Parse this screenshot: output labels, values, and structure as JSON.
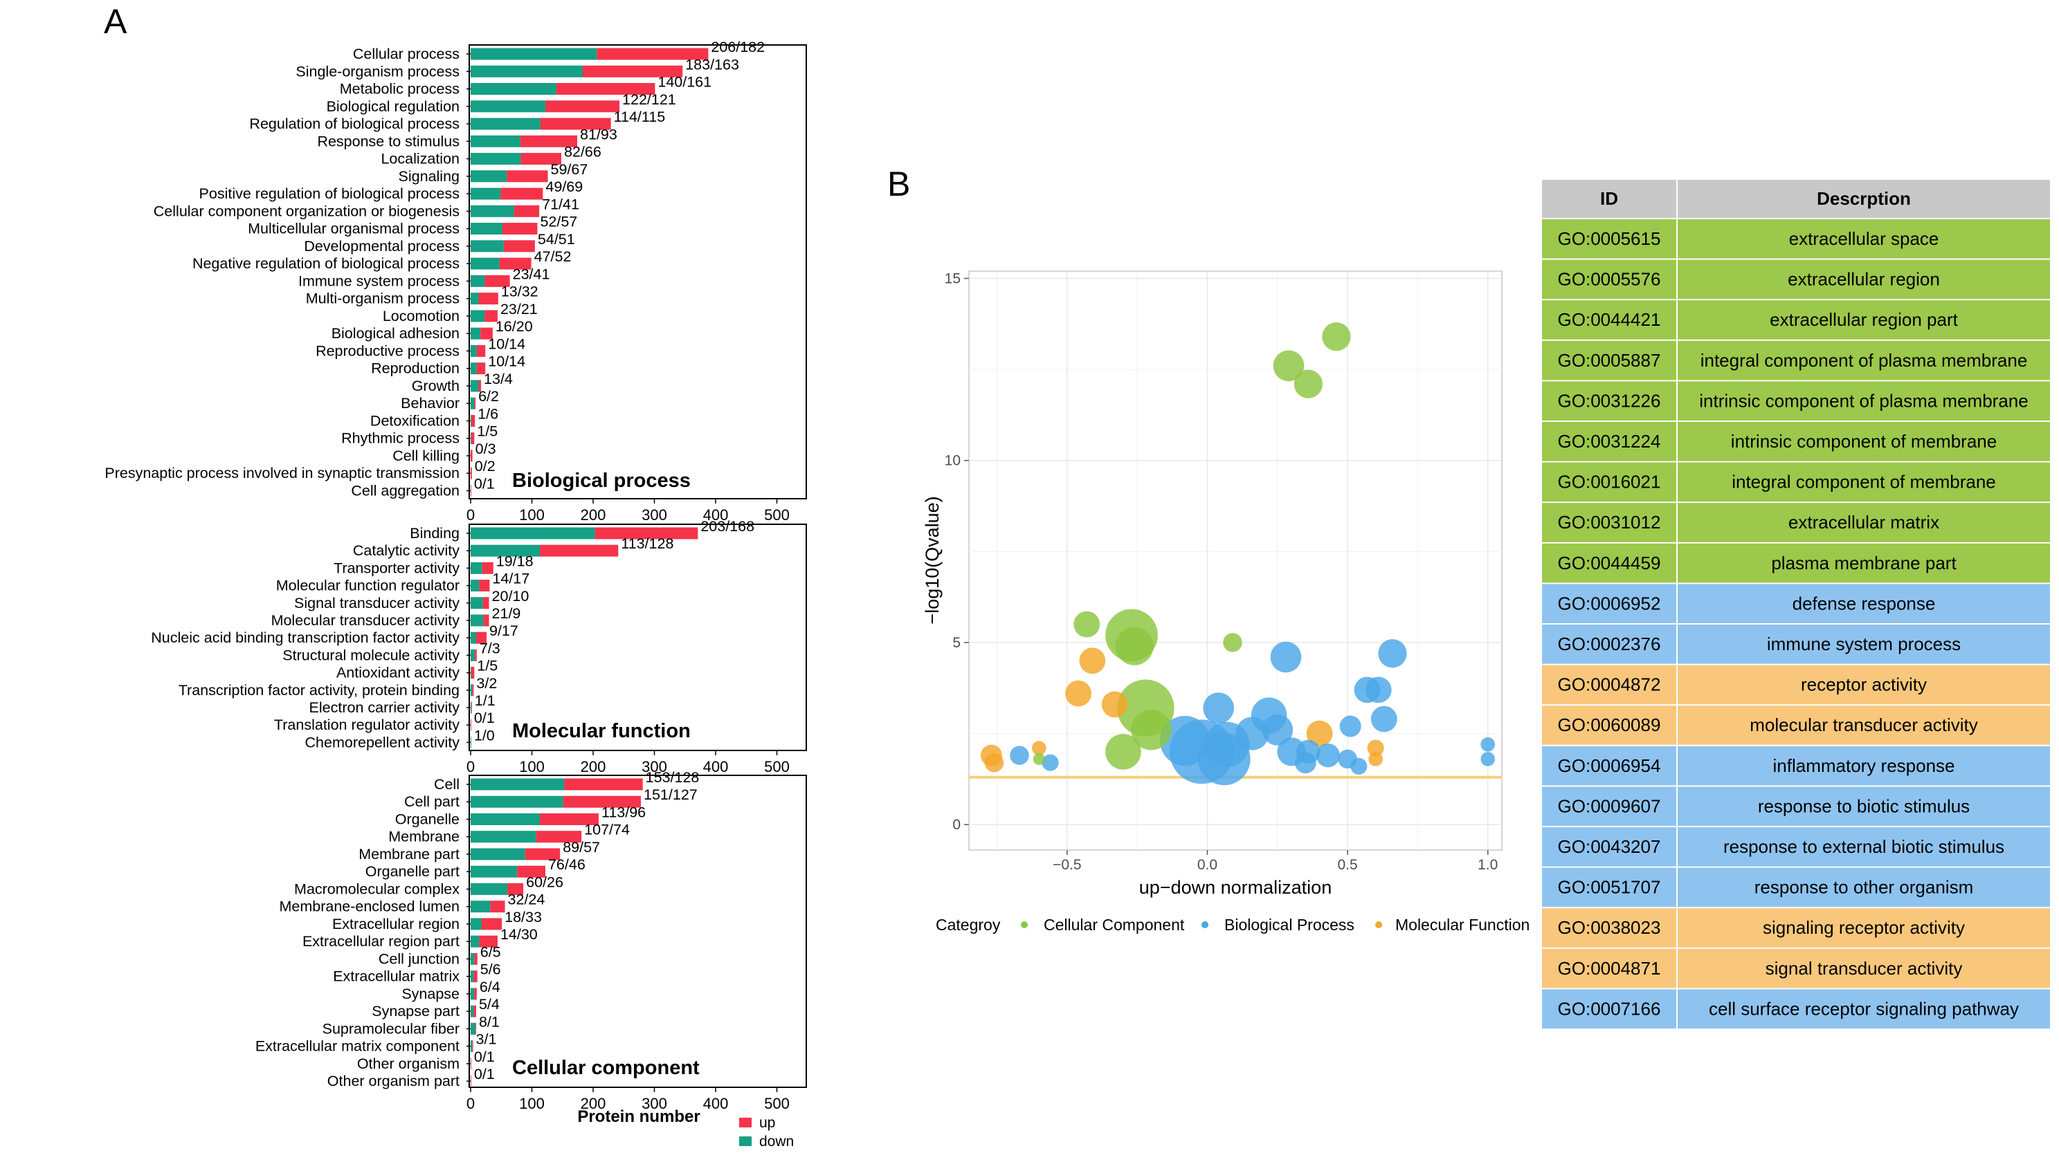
{
  "panel_a_label": "A",
  "panel_b_label": "B",
  "chart_data": [
    {
      "type": "bar",
      "stacked": true,
      "orientation": "horizontal",
      "title": "Biological process",
      "categories": [
        "Cellular process",
        "Single-organism process",
        "Metabolic process",
        "Biological regulation",
        "Regulation of biological process",
        "Response to stimulus",
        "Localization",
        "Signaling",
        "Positive regulation of biological process",
        "Cellular component organization or biogenesis",
        "Multicellular organismal process",
        "Developmental process",
        "Negative regulation of biological process",
        "Immune system process",
        "Multi-organism process",
        "Locomotion",
        "Biological adhesion",
        "Reproductive process",
        "Reproduction",
        "Growth",
        "Behavior",
        "Detoxification",
        "Rhythmic process",
        "Cell killing",
        "Presynaptic process involved in synaptic transmission",
        "Cell aggregation"
      ],
      "labels": [
        "206/182",
        "183/163",
        "140/161",
        "122/121",
        "114/115",
        "81/93",
        "82/66",
        "59/67",
        "49/69",
        "71/41",
        "52/57",
        "54/51",
        "47/52",
        "23/41",
        "13/32",
        "23/21",
        "16/20",
        "10/14",
        "10/14",
        "13/4",
        "6/2",
        "1/6",
        "1/5",
        "0/3",
        "0/2",
        "0/1"
      ],
      "series": [
        {
          "name": "down",
          "color": "#16a085",
          "values": [
            206,
            183,
            140,
            122,
            114,
            81,
            82,
            59,
            49,
            71,
            52,
            54,
            47,
            23,
            13,
            23,
            16,
            10,
            10,
            13,
            6,
            1,
            1,
            0,
            0,
            0
          ]
        },
        {
          "name": "up",
          "color": "#f5334a",
          "values": [
            182,
            163,
            161,
            121,
            115,
            93,
            66,
            67,
            69,
            41,
            57,
            51,
            52,
            41,
            32,
            21,
            20,
            14,
            14,
            4,
            2,
            6,
            5,
            3,
            2,
            1
          ]
        }
      ],
      "xlim": [
        0,
        550
      ],
      "xticks": [
        0,
        100,
        200,
        300,
        400,
        500
      ]
    },
    {
      "type": "bar",
      "stacked": true,
      "orientation": "horizontal",
      "title": "Molecular function",
      "categories": [
        "Binding",
        "Catalytic activity",
        "Transporter activity",
        "Molecular function regulator",
        "Signal transducer activity",
        "Molecular transducer activity",
        "Nucleic acid binding transcription factor activity",
        "Structural molecule activity",
        "Antioxidant activity",
        "Transcription factor activity, protein binding",
        "Electron carrier activity",
        "Translation regulator activity",
        "Chemorepellent activity"
      ],
      "labels": [
        "203/168",
        "113/128",
        "19/18",
        "14/17",
        "20/10",
        "21/9",
        "9/17",
        "7/3",
        "1/5",
        "3/2",
        "1/1",
        "0/1",
        "1/0"
      ],
      "series": [
        {
          "name": "down",
          "color": "#16a085",
          "values": [
            203,
            113,
            19,
            14,
            20,
            21,
            9,
            7,
            1,
            3,
            1,
            0,
            1
          ]
        },
        {
          "name": "up",
          "color": "#f5334a",
          "values": [
            168,
            128,
            18,
            17,
            10,
            9,
            17,
            3,
            5,
            2,
            1,
            1,
            0
          ]
        }
      ],
      "xlim": [
        0,
        550
      ],
      "xticks": [
        0,
        100,
        200,
        300,
        400,
        500
      ]
    },
    {
      "type": "bar",
      "stacked": true,
      "orientation": "horizontal",
      "title": "Cellular component",
      "categories": [
        "Cell",
        "Cell part",
        "Organelle",
        "Membrane",
        "Membrane part",
        "Organelle part",
        "Macromolecular complex",
        "Membrane-enclosed lumen",
        "Extracellular region",
        "Extracellular region part",
        "Cell junction",
        "Extracellular matrix",
        "Synapse",
        "Synapse part",
        "Supramolecular fiber",
        "Extracellular matrix component",
        "Other organism",
        "Other organism part"
      ],
      "labels": [
        "153/128",
        "151/127",
        "113/96",
        "107/74",
        "89/57",
        "76/46",
        "60/26",
        "32/24",
        "18/33",
        "14/30",
        "6/5",
        "5/6",
        "6/4",
        "5/4",
        "8/1",
        "3/1",
        "0/1",
        "0/1"
      ],
      "series": [
        {
          "name": "down",
          "color": "#16a085",
          "values": [
            153,
            151,
            113,
            107,
            89,
            76,
            60,
            32,
            18,
            14,
            6,
            5,
            6,
            5,
            8,
            3,
            0,
            0
          ]
        },
        {
          "name": "up",
          "color": "#f5334a",
          "values": [
            128,
            127,
            96,
            74,
            57,
            46,
            26,
            24,
            33,
            30,
            5,
            6,
            4,
            4,
            1,
            1,
            1,
            1
          ]
        }
      ],
      "xlim": [
        0,
        550
      ],
      "xticks": [
        0,
        100,
        200,
        300,
        400,
        500
      ],
      "xlabel": "Protein number",
      "legend": [
        {
          "name": "up",
          "color": "#f5334a"
        },
        {
          "name": "down",
          "color": "#16a085"
        }
      ]
    },
    {
      "type": "scatter",
      "subtype": "bubble",
      "xlabel": "up−down normalization",
      "ylabel": "−log10(Qvalue)",
      "xlim": [
        -0.85,
        1.05
      ],
      "ylim": [
        -0.7,
        15.2
      ],
      "xticks": [
        -0.5,
        0.0,
        0.5,
        1.0
      ],
      "xtick_labels": [
        "−0.5",
        "0.0",
        "0.5",
        "1.0"
      ],
      "yticks": [
        0,
        5,
        10,
        15
      ],
      "ytick_labels": [
        "0",
        "5",
        "10",
        "15"
      ],
      "threshold_y": 1.3,
      "threshold_color": "#f5cf7a",
      "legend_title": "Categroy",
      "categories": [
        {
          "name": "Cellular Component",
          "color": "#8cc63f"
        },
        {
          "name": "Biological Process",
          "color": "#4aa6e8"
        },
        {
          "name": "Molecular Function",
          "color": "#f4a62a"
        }
      ],
      "points": [
        {
          "x": 0.46,
          "y": 13.4,
          "size": 12,
          "category": "Cellular Component"
        },
        {
          "x": 0.29,
          "y": 12.6,
          "size": 13,
          "category": "Cellular Component"
        },
        {
          "x": 0.36,
          "y": 12.1,
          "size": 12,
          "category": "Cellular Component"
        },
        {
          "x": -0.43,
          "y": 5.5,
          "size": 11,
          "category": "Cellular Component"
        },
        {
          "x": -0.27,
          "y": 5.2,
          "size": 22,
          "category": "Cellular Component"
        },
        {
          "x": -0.26,
          "y": 4.9,
          "size": 16,
          "category": "Cellular Component"
        },
        {
          "x": 0.09,
          "y": 5.0,
          "size": 8,
          "category": "Cellular Component"
        },
        {
          "x": -0.22,
          "y": 3.2,
          "size": 24,
          "category": "Cellular Component"
        },
        {
          "x": -0.2,
          "y": 2.6,
          "size": 17,
          "category": "Cellular Component"
        },
        {
          "x": -0.3,
          "y": 2.0,
          "size": 15,
          "category": "Cellular Component"
        },
        {
          "x": -0.6,
          "y": 1.8,
          "size": 5,
          "category": "Cellular Component"
        },
        {
          "x": -0.41,
          "y": 4.5,
          "size": 11,
          "category": "Molecular Function"
        },
        {
          "x": -0.46,
          "y": 3.6,
          "size": 11,
          "category": "Molecular Function"
        },
        {
          "x": -0.33,
          "y": 3.3,
          "size": 11,
          "category": "Molecular Function"
        },
        {
          "x": -0.77,
          "y": 1.9,
          "size": 9,
          "category": "Molecular Function"
        },
        {
          "x": -0.76,
          "y": 1.7,
          "size": 8,
          "category": "Molecular Function"
        },
        {
          "x": -0.6,
          "y": 2.1,
          "size": 6,
          "category": "Molecular Function"
        },
        {
          "x": 0.4,
          "y": 2.5,
          "size": 11,
          "category": "Molecular Function"
        },
        {
          "x": 0.6,
          "y": 2.1,
          "size": 7,
          "category": "Molecular Function"
        },
        {
          "x": 0.6,
          "y": 1.8,
          "size": 6,
          "category": "Molecular Function"
        },
        {
          "x": 0.28,
          "y": 4.6,
          "size": 13,
          "category": "Biological Process"
        },
        {
          "x": 0.66,
          "y": 4.7,
          "size": 12,
          "category": "Biological Process"
        },
        {
          "x": 0.57,
          "y": 3.7,
          "size": 11,
          "category": "Biological Process"
        },
        {
          "x": 0.61,
          "y": 3.7,
          "size": 11,
          "category": "Biological Process"
        },
        {
          "x": 0.63,
          "y": 2.9,
          "size": 11,
          "category": "Biological Process"
        },
        {
          "x": 0.51,
          "y": 2.7,
          "size": 9,
          "category": "Biological Process"
        },
        {
          "x": 0.04,
          "y": 3.2,
          "size": 13,
          "category": "Biological Process"
        },
        {
          "x": 0.22,
          "y": 3.0,
          "size": 15,
          "category": "Biological Process"
        },
        {
          "x": 0.25,
          "y": 2.6,
          "size": 13,
          "category": "Biological Process"
        },
        {
          "x": 0.16,
          "y": 2.5,
          "size": 14,
          "category": "Biological Process"
        },
        {
          "x": -0.08,
          "y": 2.3,
          "size": 21,
          "category": "Biological Process"
        },
        {
          "x": 0.07,
          "y": 2.2,
          "size": 19,
          "category": "Biological Process"
        },
        {
          "x": -0.02,
          "y": 2.0,
          "size": 27,
          "category": "Biological Process"
        },
        {
          "x": 0.06,
          "y": 1.8,
          "size": 22,
          "category": "Biological Process"
        },
        {
          "x": 0.3,
          "y": 2.0,
          "size": 12,
          "category": "Biological Process"
        },
        {
          "x": 0.36,
          "y": 2.0,
          "size": 10,
          "category": "Biological Process"
        },
        {
          "x": 0.43,
          "y": 1.9,
          "size": 10,
          "category": "Biological Process"
        },
        {
          "x": 0.35,
          "y": 1.7,
          "size": 9,
          "category": "Biological Process"
        },
        {
          "x": 0.5,
          "y": 1.8,
          "size": 8,
          "category": "Biological Process"
        },
        {
          "x": 0.54,
          "y": 1.6,
          "size": 7,
          "category": "Biological Process"
        },
        {
          "x": -0.67,
          "y": 1.9,
          "size": 8,
          "category": "Biological Process"
        },
        {
          "x": -0.56,
          "y": 1.7,
          "size": 7,
          "category": "Biological Process"
        },
        {
          "x": 1.0,
          "y": 2.2,
          "size": 6,
          "category": "Biological Process"
        },
        {
          "x": 1.0,
          "y": 1.8,
          "size": 6,
          "category": "Biological Process"
        }
      ]
    }
  ],
  "go_table": {
    "headers": [
      "ID",
      "Descrption"
    ],
    "rows": [
      {
        "id": "GO:0005615",
        "description": "extracellular space",
        "color": "#9cc84b"
      },
      {
        "id": "GO:0005576",
        "description": "extracellular region",
        "color": "#9cc84b"
      },
      {
        "id": "GO:0044421",
        "description": "extracellular region part",
        "color": "#9cc84b"
      },
      {
        "id": "GO:0005887",
        "description": "integral component of plasma membrane",
        "color": "#9cc84b"
      },
      {
        "id": "GO:0031226",
        "description": "intrinsic component of plasma membrane",
        "color": "#9cc84b"
      },
      {
        "id": "GO:0031224",
        "description": "intrinsic component of membrane",
        "color": "#9cc84b"
      },
      {
        "id": "GO:0016021",
        "description": "integral component of membrane",
        "color": "#9cc84b"
      },
      {
        "id": "GO:0031012",
        "description": "extracellular matrix",
        "color": "#9cc84b"
      },
      {
        "id": "GO:0044459",
        "description": "plasma membrane part",
        "color": "#9cc84b"
      },
      {
        "id": "GO:0006952",
        "description": "defense response",
        "color": "#8ec3ef"
      },
      {
        "id": "GO:0002376",
        "description": "immune system process",
        "color": "#8ec3ef"
      },
      {
        "id": "GO:0004872",
        "description": "receptor activity",
        "color": "#f8c77c"
      },
      {
        "id": "GO:0060089",
        "description": "molecular transducer activity",
        "color": "#f8c77c"
      },
      {
        "id": "GO:0006954",
        "description": "inflammatory response",
        "color": "#8ec3ef"
      },
      {
        "id": "GO:0009607",
        "description": "response to biotic stimulus",
        "color": "#8ec3ef"
      },
      {
        "id": "GO:0043207",
        "description": "response to external biotic stimulus",
        "color": "#8ec3ef"
      },
      {
        "id": "GO:0051707",
        "description": "response to other organism",
        "color": "#8ec3ef"
      },
      {
        "id": "GO:0038023",
        "description": "signaling receptor activity",
        "color": "#f8c77c"
      },
      {
        "id": "GO:0004871",
        "description": "signal transducer activity",
        "color": "#f8c77c"
      },
      {
        "id": "GO:0007166",
        "description": "cell surface receptor signaling pathway",
        "color": "#8ec3ef"
      }
    ]
  }
}
